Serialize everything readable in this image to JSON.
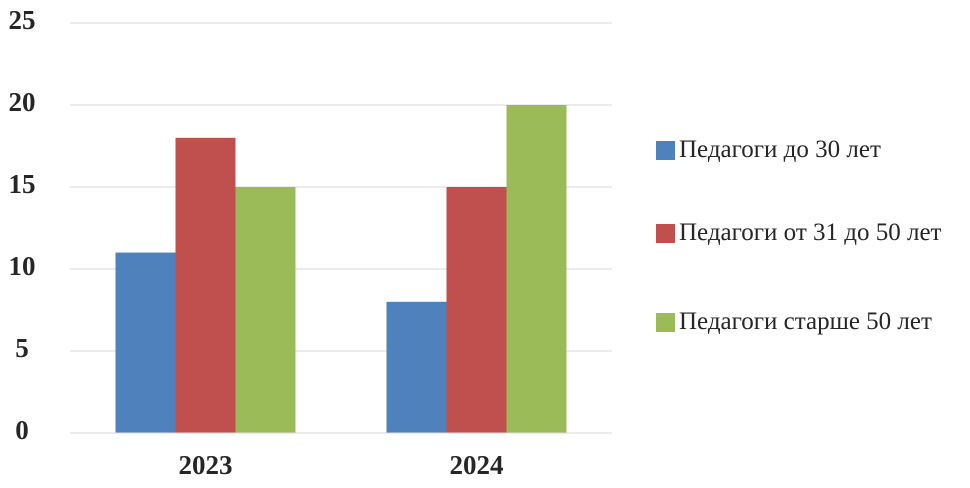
{
  "chart_data": {
    "type": "bar",
    "categories": [
      "2023",
      "2024"
    ],
    "series": [
      {
        "name": "Педагоги до 30 лет",
        "color": "#4f81bd",
        "values": [
          11,
          8
        ]
      },
      {
        "name": "Педагоги от 31 до 50 лет",
        "color": "#c0504d",
        "values": [
          18,
          15
        ]
      },
      {
        "name": "Педагоги старше 50 лет",
        "color": "#9bbb59",
        "values": [
          15,
          20
        ]
      }
    ],
    "ylim": [
      0,
      25
    ],
    "yticks": [
      0,
      5,
      10,
      15,
      20,
      25
    ],
    "grid": true,
    "legend": "right"
  }
}
